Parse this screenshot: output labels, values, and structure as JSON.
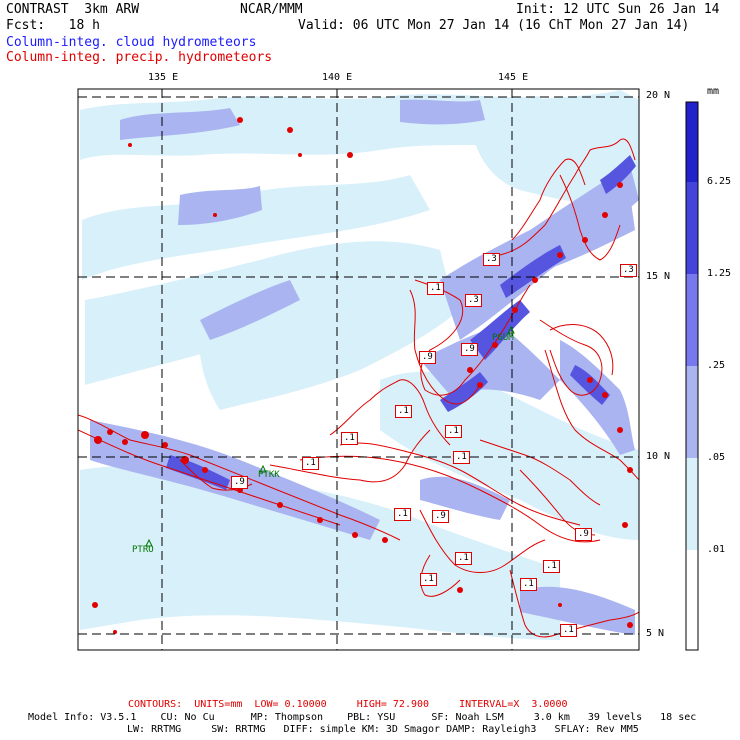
{
  "header": {
    "model": "CONTRAST  3km ARW",
    "org": "NCAR/MMM",
    "init": "Init: 12 UTC Sun 26 Jan 14",
    "fcst": "Fcst:   18 h",
    "valid": "Valid: 06 UTC Mon 27 Jan 14 (16 ChT Mon 27 Jan 14)",
    "field1": "Column-integ. cloud hydrometeors",
    "field2": "Column-integ. precip. hydrometeors"
  },
  "axes": {
    "lon_labels": [
      "135 E",
      "140 E",
      "145 E"
    ],
    "lat_labels": [
      "20 N",
      "15 N",
      "10 N",
      "5 N"
    ]
  },
  "colorbar": {
    "unit": "mm",
    "ticks": [
      "6.25",
      "1.25",
      ".25",
      ".05",
      ".01"
    ],
    "colors": [
      "#2222cc",
      "#4444dd",
      "#7777ee",
      "#aab4f0",
      "#d8f0fa",
      "#ffffff"
    ]
  },
  "stations": [
    {
      "name": "PGUM"
    },
    {
      "name": "PTKK"
    },
    {
      "name": "PTRO"
    }
  ],
  "contour_labels": [
    ".3",
    ".1",
    ".3",
    ".9",
    ".3",
    ".9",
    ".1",
    ".1",
    ".1",
    ".1",
    ".1",
    ".9",
    ".9",
    ".1",
    ".9",
    ".1",
    ".1",
    ".1",
    ".1",
    ".1"
  ],
  "footer": {
    "contours": "CONTOURS:  UNITS=mm  LOW= 0.10000     HIGH= 72.900     INTERVAL=X  3.0000",
    "model_info1": "Model Info: V3.5.1    CU: No Cu      MP: Thompson    PBL: YSU      SF: Noah LSM     3.0 km   39 levels   18 sec",
    "model_info2": "LW: RRTMG     SW: RRTMG   DIFF: simple KM: 3D Smagor DAMP: Rayleigh3   SFLAY: Rev MM5"
  },
  "colors": {
    "contour": "#e00000",
    "cloud_blue": "#1a1aff"
  }
}
